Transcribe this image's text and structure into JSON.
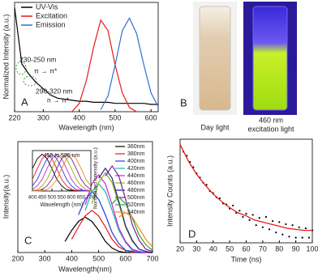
{
  "chart_data": [
    {
      "type": "line",
      "x_label": "Wavelength (nm)",
      "y_label": "Normalized Intensity (a.u.)",
      "panel_label": "A",
      "x": [
        220,
        240,
        260,
        280,
        300,
        320,
        340,
        360,
        380,
        400,
        420,
        440,
        460,
        480,
        500,
        520,
        540,
        560,
        580,
        600,
        620
      ],
      "series": [
        {
          "name": "UV-Vis",
          "color": "#000000",
          "values": [
            1.0,
            0.46,
            0.36,
            0.28,
            0.22,
            0.16,
            0.13,
            0.12,
            0.11,
            0.1,
            0.1,
            0.09,
            0.09,
            0.09,
            0.08,
            0.08,
            0.08,
            0.08,
            0.08,
            0.07,
            0.07
          ]
        },
        {
          "name": "Excitation",
          "color": "#e8191a",
          "values": [
            null,
            null,
            null,
            null,
            null,
            null,
            null,
            null,
            0.0,
            0.08,
            0.3,
            0.62,
            0.88,
            0.78,
            0.45,
            0.18,
            0.04,
            0.0,
            null,
            null,
            null
          ]
        },
        {
          "name": "Emission",
          "color": "#2f6fd6",
          "values": [
            null,
            null,
            null,
            null,
            null,
            null,
            null,
            null,
            null,
            null,
            null,
            null,
            0.02,
            0.15,
            0.45,
            0.78,
            0.9,
            0.75,
            0.45,
            0.18,
            0.05
          ]
        }
      ],
      "xlim": [
        220,
        620
      ],
      "xticks": [
        220,
        300,
        400,
        500,
        600
      ],
      "ylim": [
        0,
        1.05
      ],
      "annotations": [
        "230-250 nm",
        "π → π*",
        "290-320 nm",
        "n → π*"
      ]
    },
    {
      "type": "line",
      "x_label": "Wavelength(nm)",
      "y_label": "Intensity(a.u.)",
      "panel_label": "C",
      "x": [
        350,
        375,
        400,
        425,
        450,
        475,
        500,
        525,
        550,
        575,
        600,
        625,
        650,
        675,
        700
      ],
      "series": [
        {
          "name": "360nm",
          "color": "#000000",
          "values": [
            null,
            0.1,
            0.2,
            0.28,
            0.32,
            0.28,
            0.2,
            0.1,
            0.04,
            0.01,
            0,
            0,
            0,
            0,
            0
          ]
        },
        {
          "name": "380nm",
          "color": "#e8191a",
          "values": [
            null,
            null,
            0.12,
            0.23,
            0.33,
            0.38,
            0.33,
            0.23,
            0.12,
            0.05,
            0.02,
            0,
            0,
            0,
            0
          ]
        },
        {
          "name": "400nm",
          "color": "#1f3fe0",
          "values": [
            null,
            null,
            null,
            0.34,
            0.48,
            0.55,
            0.48,
            0.34,
            0.18,
            0.08,
            0.02,
            0.01,
            0,
            0,
            0
          ]
        },
        {
          "name": "420nm",
          "color": "#17b3b3",
          "values": [
            null,
            null,
            null,
            null,
            0.38,
            0.55,
            0.62,
            0.55,
            0.38,
            0.2,
            0.09,
            0.02,
            0.01,
            0,
            0
          ]
        },
        {
          "name": "440nm",
          "color": "#d21fd2",
          "values": [
            null,
            null,
            null,
            null,
            0.43,
            0.62,
            0.7,
            0.62,
            0.43,
            0.22,
            0.1,
            0.03,
            0.01,
            0,
            0
          ]
        },
        {
          "name": "460nm",
          "color": "#8db300",
          "values": [
            null,
            null,
            null,
            null,
            null,
            0.44,
            0.63,
            0.72,
            0.63,
            0.44,
            0.23,
            0.1,
            0.03,
            0.01,
            0
          ]
        },
        {
          "name": "480nm",
          "color": "#1f1f8f",
          "values": [
            null,
            null,
            null,
            null,
            null,
            null,
            0.67,
            0.76,
            0.67,
            0.46,
            0.24,
            0.11,
            0.03,
            0.01,
            0
          ]
        },
        {
          "name": "500nm",
          "color": "#7a1f9a",
          "values": [
            null,
            null,
            null,
            null,
            null,
            null,
            null,
            0.69,
            0.78,
            0.69,
            0.48,
            0.25,
            0.11,
            0.03,
            0.01
          ]
        },
        {
          "name": "520nm",
          "color": "#2fa02f",
          "values": [
            null,
            null,
            null,
            null,
            null,
            null,
            null,
            null,
            0.44,
            0.5,
            0.44,
            0.31,
            0.16,
            0.07,
            0.02
          ]
        },
        {
          "name": "540nm",
          "color": "#f08a1a",
          "values": [
            null,
            null,
            null,
            null,
            null,
            null,
            null,
            null,
            null,
            0.32,
            0.36,
            0.32,
            0.22,
            0.12,
            0.05
          ]
        }
      ],
      "xlim": [
        200,
        700
      ],
      "xticks": [
        200,
        300,
        400,
        500,
        600,
        700
      ],
      "ylim": [
        0,
        1
      ],
      "inset": {
        "x_label": "Wavelength (nm)",
        "y_label": "Normalized Intensity (a.u.)",
        "annotation": "455 to 595 nm",
        "x": [
          400,
          425,
          450,
          475,
          500,
          525,
          550,
          575,
          600,
          625,
          650,
          675,
          700
        ],
        "series": [
          {
            "color": "#000000",
            "values": [
              0.61,
              0.88,
              1,
              0.88,
              0.61,
              0.32,
              0.14,
              0.04,
              0.01,
              0,
              0,
              0,
              0
            ]
          },
          {
            "color": "#e8191a",
            "values": [
              0.32,
              0.61,
              0.88,
              1,
              0.88,
              0.61,
              0.32,
              0.14,
              0.04,
              0.01,
              0,
              0,
              0
            ]
          },
          {
            "color": "#1f3fe0",
            "values": [
              0.14,
              0.32,
              0.61,
              0.88,
              1,
              0.88,
              0.61,
              0.32,
              0.14,
              0.04,
              0.01,
              0,
              0
            ]
          },
          {
            "color": "#d21fd2",
            "values": [
              0.04,
              0.14,
              0.32,
              0.61,
              0.88,
              1,
              0.88,
              0.61,
              0.32,
              0.14,
              0.04,
              0.01,
              0
            ]
          },
          {
            "color": "#8db300",
            "values": [
              0.01,
              0.04,
              0.14,
              0.32,
              0.61,
              0.88,
              1,
              0.88,
              0.61,
              0.32,
              0.14,
              0.04,
              0.01
            ]
          },
          {
            "color": "#7a1f9a",
            "values": [
              0,
              0.01,
              0.04,
              0.14,
              0.32,
              0.61,
              0.88,
              1,
              0.88,
              0.61,
              0.32,
              0.14,
              0.04
            ]
          },
          {
            "color": "#f08a1a",
            "values": [
              0,
              0,
              0.01,
              0.04,
              0.14,
              0.32,
              0.61,
              0.88,
              1,
              0.88,
              0.61,
              0.32,
              0.14
            ]
          }
        ],
        "xlim": [
          400,
          700
        ],
        "xticks": [
          400,
          450,
          500,
          550,
          600,
          650,
          700
        ],
        "ylim": [
          0,
          1.1
        ]
      }
    },
    {
      "type": "scatter",
      "x_label": "Time (ns)",
      "y_label": "Intensity Counts (a.u.)",
      "panel_label": "D",
      "color": "#000000",
      "x": [
        22,
        24,
        26,
        28,
        30,
        32,
        34,
        36,
        38,
        40,
        42,
        44,
        46,
        48,
        50,
        52,
        54,
        56,
        58,
        60,
        62,
        64,
        66,
        68,
        70,
        72,
        74,
        76,
        78,
        80,
        82,
        84,
        86,
        88,
        90,
        92,
        94,
        96,
        98,
        100
      ],
      "values": [
        0.88,
        0.84,
        0.78,
        0.73,
        0.67,
        0.63,
        0.58,
        0.56,
        0.5,
        0.48,
        0.44,
        0.43,
        0.38,
        0.37,
        0.33,
        0.36,
        0.29,
        0.31,
        0.25,
        0.28,
        0.22,
        0.27,
        0.17,
        0.24,
        0.15,
        0.25,
        0.13,
        0.21,
        0.1,
        0.2,
        0.08,
        0.18,
        0.06,
        0.17,
        0.05,
        0.15,
        0.05,
        0.14,
        0.05,
        0.12
      ],
      "fit": {
        "color": "#e8191a",
        "x": [
          20,
          25,
          30,
          35,
          40,
          45,
          50,
          55,
          60,
          65,
          70,
          75,
          80,
          85,
          90,
          95,
          100
        ],
        "values": [
          0.95,
          0.79,
          0.66,
          0.56,
          0.47,
          0.4,
          0.34,
          0.29,
          0.26,
          0.22,
          0.2,
          0.18,
          0.16,
          0.14,
          0.13,
          0.12,
          0.12
        ]
      },
      "xlim": [
        20,
        100
      ],
      "xticks": [
        20,
        30,
        40,
        50,
        60,
        70,
        80,
        90,
        100
      ],
      "ylim": [
        0,
        1
      ]
    }
  ],
  "photo_panel": {
    "label": "B",
    "left_caption": "Day light",
    "right_caption": [
      "460 nm",
      "excitation light"
    ]
  }
}
